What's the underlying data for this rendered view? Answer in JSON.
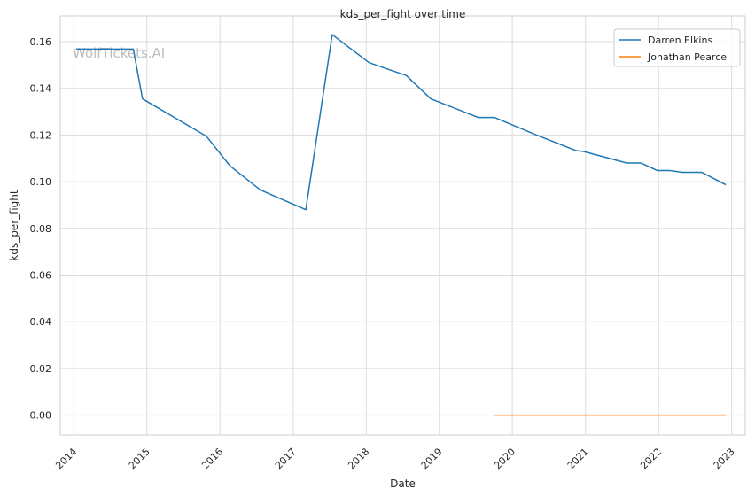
{
  "chart_data": {
    "type": "line",
    "title": "kds_per_fight over time",
    "xlabel": "Date",
    "ylabel": "kds_per_fight",
    "watermark": "WolfTickets.AI",
    "x_ticks": [
      "2014",
      "2015",
      "2016",
      "2017",
      "2018",
      "2019",
      "2020",
      "2021",
      "2022",
      "2023"
    ],
    "y_ticks": [
      "0.00",
      "0.02",
      "0.04",
      "0.06",
      "0.08",
      "0.10",
      "0.12",
      "0.14",
      "0.16"
    ],
    "xlim": [
      "2013-10-25",
      "2023-03-10"
    ],
    "ylim": [
      -0.0085,
      0.171
    ],
    "grid": true,
    "legend_position": "top-right",
    "series": [
      {
        "name": "Darren Elkins",
        "color": "#1f77b4",
        "points": [
          [
            "2014-01-15",
            0.1568
          ],
          [
            "2014-10-25",
            0.1568
          ],
          [
            "2014-12-10",
            0.1355
          ],
          [
            "2015-10-25",
            0.1195
          ],
          [
            "2016-02-20",
            0.1068
          ],
          [
            "2016-07-20",
            0.0965
          ],
          [
            "2017-03-05",
            0.088
          ],
          [
            "2017-07-15",
            0.163
          ],
          [
            "2018-01-15",
            0.151
          ],
          [
            "2018-07-20",
            0.1455
          ],
          [
            "2018-11-20",
            0.1355
          ],
          [
            "2019-07-15",
            0.1275
          ],
          [
            "2019-10-05",
            0.1275
          ],
          [
            "2020-05-01",
            0.12
          ],
          [
            "2020-11-15",
            0.1133
          ],
          [
            "2020-12-20",
            0.113
          ],
          [
            "2021-07-25",
            0.108
          ],
          [
            "2021-10-05",
            0.108
          ],
          [
            "2021-12-25",
            0.1048
          ],
          [
            "2022-02-25",
            0.1048
          ],
          [
            "2022-04-30",
            0.104
          ],
          [
            "2022-08-05",
            0.104
          ],
          [
            "2022-11-30",
            0.0988
          ]
        ]
      },
      {
        "name": "Jonathan Pearce",
        "color": "#ff7f0e",
        "points": [
          [
            "2019-10-05",
            0.0
          ],
          [
            "2022-11-30",
            0.0
          ]
        ]
      }
    ]
  }
}
